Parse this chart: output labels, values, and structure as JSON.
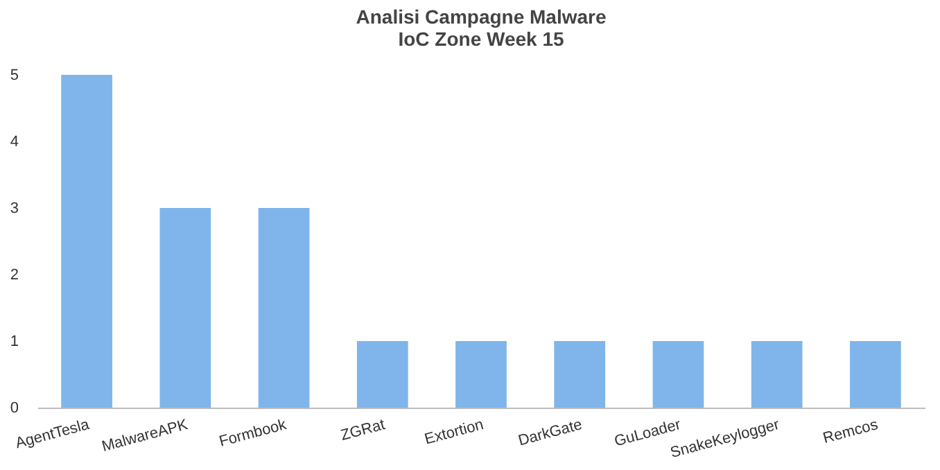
{
  "chart_data": {
    "type": "bar",
    "title": "Analisi Campagne Malware",
    "subtitle": "IoC Zone Week 15",
    "categories": [
      "AgentTesla",
      "MalwareAPK",
      "Formbook",
      "ZGRat",
      "Extortion",
      "DarkGate",
      "GuLoader",
      "SnakeKeylogger",
      "Remcos"
    ],
    "values": [
      5,
      3,
      3,
      1,
      1,
      1,
      1,
      1,
      1
    ],
    "color": "#7fb5eb",
    "ylim": [
      0,
      5
    ],
    "yticks": [
      0,
      1,
      2,
      3,
      4,
      5
    ],
    "grid": false
  }
}
